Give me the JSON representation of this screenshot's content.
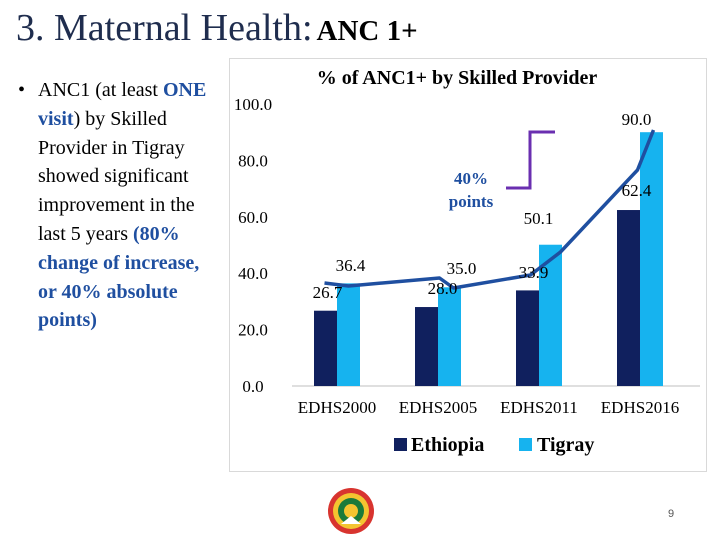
{
  "slide": {
    "title_main": "3. Maternal Health:",
    "title_sub": "ANC 1+",
    "bullet": {
      "marker": "•",
      "t1": "ANC1 (at least ",
      "t2": "ONE visit",
      "t3": ") by Skilled Provider in Tigray showed significant improvement in the last 5 years ",
      "t4": "(80% change of increase, or 40% absolute points)"
    },
    "page_number": "9"
  },
  "annotation": {
    "line1": "40%",
    "line2": "points"
  },
  "chart_data": {
    "type": "bar",
    "title": "% of ANC1+  by Skilled Provider",
    "categories": [
      "EDHS2000",
      "EDHS2005",
      "EDHS2011",
      "EDHS2016"
    ],
    "series": [
      {
        "name": "Ethiopia",
        "values": [
          26.7,
          28.0,
          33.9,
          62.4
        ],
        "color": "#10205e"
      },
      {
        "name": "Tigray",
        "values": [
          36.4,
          35.0,
          50.1,
          90.0
        ],
        "color": "#16b3ef"
      }
    ],
    "ylim": [
      0,
      100
    ],
    "yticks": [
      "0.0",
      "20.0",
      "40.0",
      "60.0",
      "80.0",
      "100.0"
    ],
    "data_labels": {
      "Ethiopia": [
        "26.7",
        "28.0",
        "33.9",
        "62.4"
      ],
      "Tigray": [
        "36.4",
        "35.0",
        "50.1",
        "90.0"
      ]
    },
    "legend_position": "bottom",
    "trend_line_color": "#1f4fa0",
    "grid": false
  }
}
